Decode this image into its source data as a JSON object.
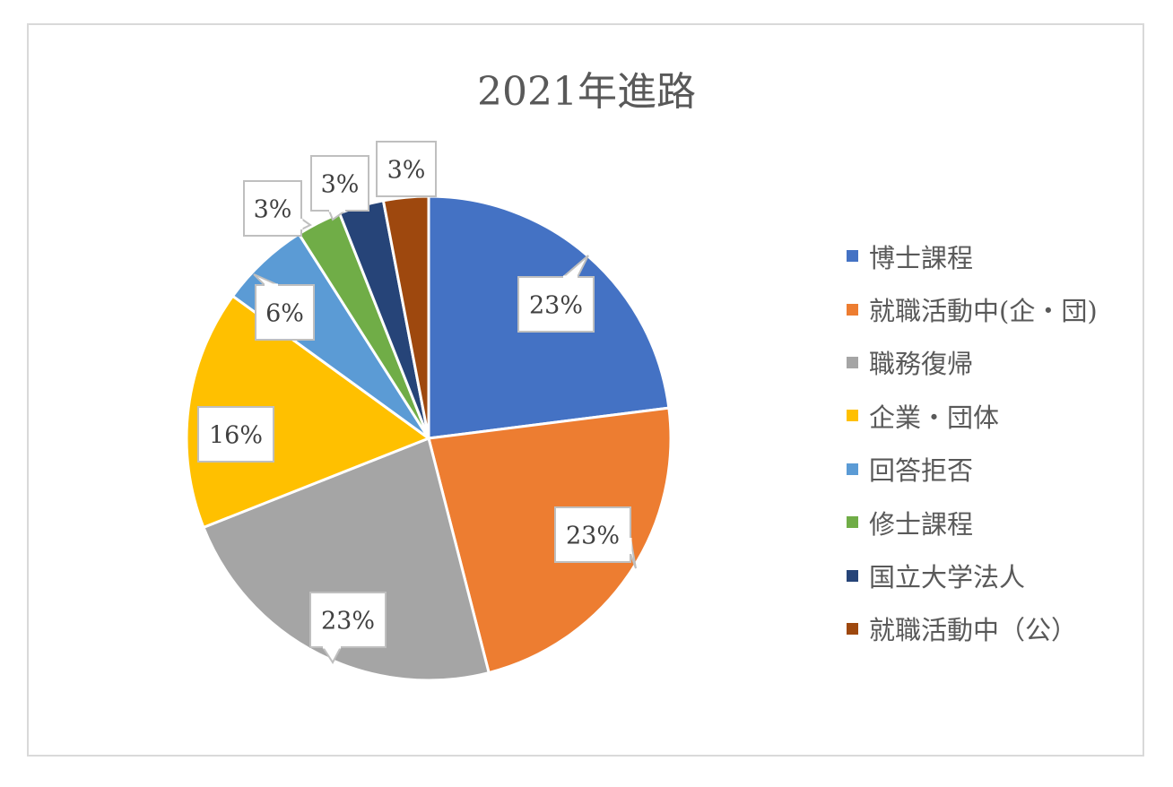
{
  "chart_data": {
    "type": "pie",
    "title": "2021年進路",
    "categories": [
      "博士課程",
      "就職活動中(企・団)",
      "職務復帰",
      "企業・団体",
      "回答拒否",
      "修士課程",
      "国立大学法人",
      "就職活動中（公）"
    ],
    "values": [
      23,
      23,
      23,
      16,
      6,
      3,
      3,
      3
    ],
    "data_labels": [
      "23%",
      "23%",
      "23%",
      "16%",
      "6%",
      "3%",
      "3%",
      "3%"
    ],
    "colors": [
      "#4472c4",
      "#ed7d31",
      "#a5a5a5",
      "#ffc000",
      "#5b9bd5",
      "#70ad47",
      "#264478",
      "#9e480e"
    ],
    "legend_position": "right",
    "label_style": "callout"
  }
}
